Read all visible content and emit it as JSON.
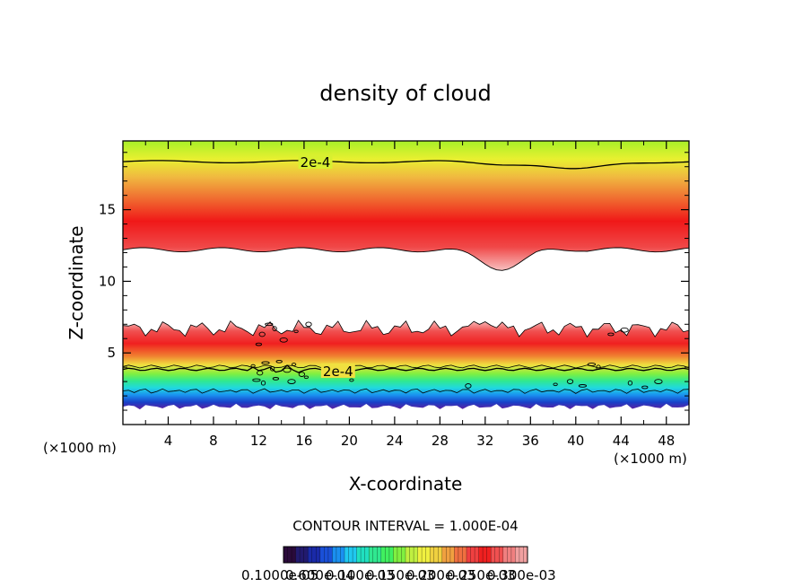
{
  "chart_data": {
    "type": "contour",
    "title": "density of cloud",
    "xlabel": "X-coordinate",
    "ylabel": "Z-coordinate",
    "x_unit_left": "(×1000 m)",
    "x_unit_right": "(×1000 m)",
    "xlim": [
      0,
      50
    ],
    "ylim": [
      0,
      19.8
    ],
    "x_ticks": [
      4,
      8,
      12,
      16,
      20,
      24,
      28,
      32,
      36,
      40,
      44,
      48
    ],
    "x_ticks_minor": [
      2,
      6,
      10,
      14,
      18,
      22,
      26,
      30,
      34,
      38,
      42,
      46
    ],
    "y_ticks": [
      5,
      10,
      15
    ],
    "y_ticks_minor": [
      1,
      2,
      3,
      4,
      6,
      7,
      8,
      9,
      11,
      12,
      13,
      14,
      16,
      17,
      18,
      19
    ],
    "contour_interval_text": "CONTOUR INTERVAL = 1.000E-04",
    "contour_labels": [
      {
        "text": "2e-4",
        "x": 17,
        "z": 18.3
      },
      {
        "text": "2e-4",
        "x": 19,
        "z": 3.7
      }
    ],
    "colorbar_labels_text": "0.1000e-05",
    "colorbar_labels_overlap": [
      "0.600e-04",
      "0.100e-03",
      "0.150e-03",
      "0.200e-03",
      "0.250e-03",
      "0.300e-03"
    ],
    "colorbar_colors": [
      "#2a0a3a",
      "#221a6e",
      "#1a2aa8",
      "#1a50d8",
      "#1a90f0",
      "#20c8f0",
      "#20e0c0",
      "#30e890",
      "#40f060",
      "#80f040",
      "#c0f040",
      "#f0f040",
      "#f0d040",
      "#f0a040",
      "#f07040",
      "#f04040",
      "#f02020",
      "#f05050",
      "#f08080",
      "#f0a0a0"
    ],
    "palette": {
      "top_green": "#a8f028",
      "yellow": "#f0e040",
      "orange": "#f08030",
      "red": "#f01818",
      "pink": "#f8c8c8",
      "cyan": "#20d8e0",
      "blue": "#1840c8",
      "purple": "#6020a0"
    }
  }
}
